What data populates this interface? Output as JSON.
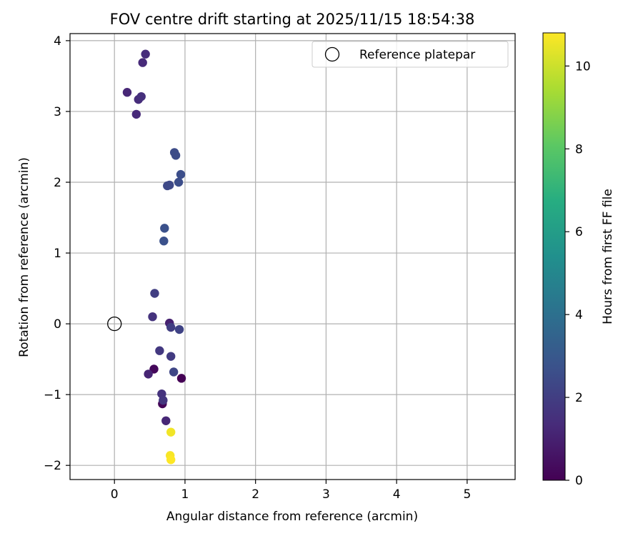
{
  "chart_data": {
    "type": "scatter",
    "title": "FOV centre drift starting at 2025/11/15 18:54:38",
    "xlabel": "Angular distance from reference (arcmin)",
    "ylabel": "Rotation from reference (arcmin)",
    "xlim": [
      -0.63,
      5.68
    ],
    "ylim": [
      -2.2,
      4.1
    ],
    "xticks": [
      0,
      1,
      2,
      3,
      4,
      5
    ],
    "xtick_labels": [
      "0",
      "1",
      "2",
      "3",
      "4",
      "5"
    ],
    "yticks": [
      -2,
      -1,
      0,
      1,
      2,
      3,
      4
    ],
    "ytick_labels": [
      "−2",
      "−1",
      "0",
      "1",
      "2",
      "3",
      "4"
    ],
    "grid": true,
    "legend": {
      "placement": "top-right",
      "entries": [
        {
          "label": "Reference platepar",
          "marker": "open-circle"
        }
      ]
    },
    "reference_point": {
      "x": 0,
      "y": 0
    },
    "colorbar": {
      "label": "Hours from first FF file",
      "colormap": "viridis",
      "range": [
        0,
        10.8
      ],
      "ticks": [
        0,
        2,
        4,
        6,
        8,
        10
      ],
      "tick_labels": [
        "0",
        "2",
        "4",
        "6",
        "8",
        "10"
      ]
    },
    "points": [
      {
        "x": 0.95,
        "y": -0.77,
        "hours": 0.0
      },
      {
        "x": 0.68,
        "y": -1.13,
        "hours": 0.1
      },
      {
        "x": 0.56,
        "y": -0.64,
        "hours": 0.2
      },
      {
        "x": 0.78,
        "y": 0.01,
        "hours": 1.0
      },
      {
        "x": 0.48,
        "y": -0.71,
        "hours": 1.1
      },
      {
        "x": 0.73,
        "y": -1.37,
        "hours": 1.2
      },
      {
        "x": 0.18,
        "y": 3.27,
        "hours": 1.2
      },
      {
        "x": 0.31,
        "y": 2.96,
        "hours": 1.3
      },
      {
        "x": 0.4,
        "y": 3.69,
        "hours": 1.3
      },
      {
        "x": 0.44,
        "y": 3.81,
        "hours": 1.4
      },
      {
        "x": 0.34,
        "y": 3.17,
        "hours": 1.4
      },
      {
        "x": 0.38,
        "y": 3.21,
        "hours": 1.5
      },
      {
        "x": 0.54,
        "y": 0.1,
        "hours": 1.6
      },
      {
        "x": 0.67,
        "y": -0.99,
        "hours": 1.6
      },
      {
        "x": 0.69,
        "y": -1.08,
        "hours": 1.7
      },
      {
        "x": 0.64,
        "y": -0.38,
        "hours": 1.8
      },
      {
        "x": 0.8,
        "y": -0.46,
        "hours": 1.9
      },
      {
        "x": 0.57,
        "y": 0.43,
        "hours": 2.0
      },
      {
        "x": 0.8,
        "y": -0.05,
        "hours": 2.0
      },
      {
        "x": 0.92,
        "y": -0.08,
        "hours": 2.2
      },
      {
        "x": 0.84,
        "y": -0.68,
        "hours": 2.3
      },
      {
        "x": 0.75,
        "y": 1.95,
        "hours": 2.4
      },
      {
        "x": 0.78,
        "y": 1.96,
        "hours": 2.4
      },
      {
        "x": 0.85,
        "y": 2.42,
        "hours": 2.5
      },
      {
        "x": 0.87,
        "y": 2.38,
        "hours": 2.5
      },
      {
        "x": 0.91,
        "y": 2.0,
        "hours": 2.6
      },
      {
        "x": 0.94,
        "y": 2.11,
        "hours": 2.6
      },
      {
        "x": 0.71,
        "y": 1.35,
        "hours": 2.7
      },
      {
        "x": 0.7,
        "y": 1.17,
        "hours": 2.7
      },
      {
        "x": 0.8,
        "y": -1.53,
        "hours": 10.6
      },
      {
        "x": 0.79,
        "y": -1.86,
        "hours": 10.7
      },
      {
        "x": 0.8,
        "y": -1.92,
        "hours": 10.8
      }
    ]
  }
}
